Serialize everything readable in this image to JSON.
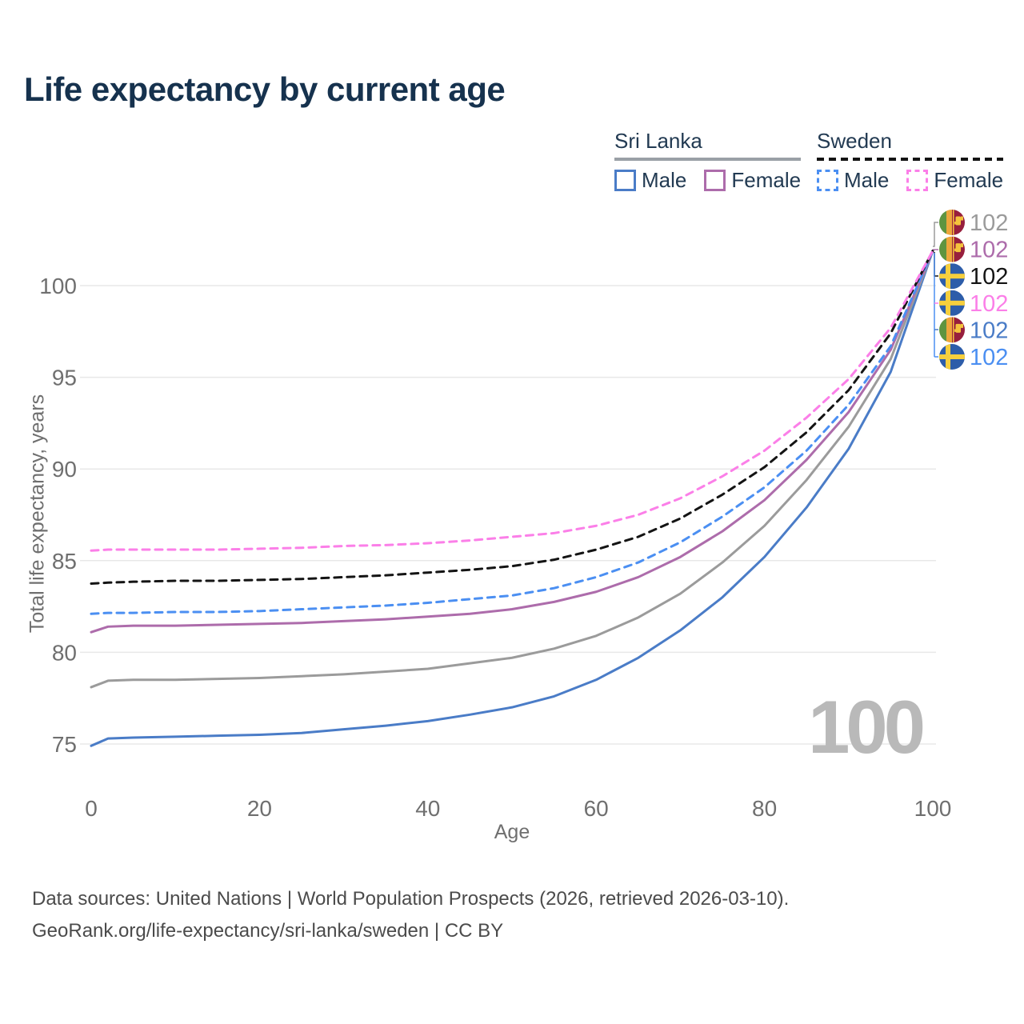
{
  "title": "Life expectancy by current age",
  "legend": {
    "groups": [
      {
        "label": "Sri Lanka",
        "items": [
          {
            "label": "Male"
          },
          {
            "label": "Female"
          }
        ]
      },
      {
        "label": "Sweden",
        "items": [
          {
            "label": "Male"
          },
          {
            "label": "Female"
          }
        ]
      }
    ]
  },
  "watermark_age": "100",
  "footer": {
    "line1": "Data sources: United Nations | World Population Prospects (2026, retrieved 2026-03-10).",
    "line2": "GeoRank.org/life-expectancy/sri-lanka/sweden | CC BY"
  },
  "chart_data": {
    "type": "line",
    "title": "Life expectancy by current age",
    "xlabel": "Age",
    "ylabel": "Total life expectancy, years",
    "xlim": [
      0,
      100
    ],
    "ylim": [
      74,
      103
    ],
    "xticks": [
      0,
      20,
      40,
      60,
      80,
      100
    ],
    "yticks": [
      75,
      80,
      85,
      90,
      95,
      100
    ],
    "grid": true,
    "legend_position": "top-right",
    "ages": [
      0,
      2,
      5,
      10,
      15,
      20,
      25,
      30,
      35,
      40,
      45,
      50,
      55,
      60,
      65,
      70,
      75,
      80,
      85,
      90,
      95,
      100
    ],
    "series": [
      {
        "name": "Sri Lanka Male",
        "country": "Sri Lanka",
        "sex": "male",
        "color": "#4a7cc7",
        "dash": false,
        "values": [
          74.9,
          75.3,
          75.35,
          75.4,
          75.45,
          75.5,
          75.6,
          75.8,
          76.0,
          76.25,
          76.6,
          77.0,
          77.6,
          78.5,
          79.7,
          81.2,
          83.0,
          85.2,
          87.9,
          91.1,
          95.3,
          101.9
        ]
      },
      {
        "name": "Sri Lanka Both sexes",
        "country": "Sri Lanka",
        "sex": "both",
        "color": "#9b9b9b",
        "dash": false,
        "values": [
          78.1,
          78.45,
          78.5,
          78.5,
          78.55,
          78.6,
          78.7,
          78.8,
          78.95,
          79.1,
          79.4,
          79.7,
          80.2,
          80.9,
          81.9,
          83.2,
          84.9,
          86.9,
          89.4,
          92.3,
          96.0,
          101.9
        ]
      },
      {
        "name": "Sri Lanka Female",
        "country": "Sri Lanka",
        "sex": "female",
        "color": "#ad6cab",
        "dash": false,
        "values": [
          81.1,
          81.4,
          81.45,
          81.45,
          81.5,
          81.55,
          81.6,
          81.7,
          81.8,
          81.95,
          82.1,
          82.35,
          82.75,
          83.3,
          84.1,
          85.2,
          86.6,
          88.3,
          90.5,
          93.1,
          96.5,
          101.9
        ]
      },
      {
        "name": "Sweden Male",
        "country": "Sweden",
        "sex": "male",
        "color": "#4b8ff2",
        "dash": true,
        "values": [
          82.1,
          82.15,
          82.15,
          82.2,
          82.2,
          82.25,
          82.35,
          82.45,
          82.55,
          82.7,
          82.9,
          83.1,
          83.5,
          84.1,
          84.9,
          86.0,
          87.4,
          89.0,
          91.0,
          93.5,
          96.7,
          101.9
        ]
      },
      {
        "name": "Sweden Both sexes",
        "country": "Sweden",
        "sex": "both",
        "color": "#141414",
        "dash": true,
        "values": [
          83.75,
          83.8,
          83.85,
          83.9,
          83.9,
          83.95,
          84.0,
          84.1,
          84.2,
          84.35,
          84.5,
          84.7,
          85.05,
          85.6,
          86.3,
          87.3,
          88.6,
          90.1,
          92.0,
          94.3,
          97.4,
          101.9
        ]
      },
      {
        "name": "Sweden Female",
        "country": "Sweden",
        "sex": "female",
        "color": "#fb7fe8",
        "dash": true,
        "values": [
          85.55,
          85.6,
          85.6,
          85.6,
          85.6,
          85.65,
          85.7,
          85.8,
          85.85,
          85.95,
          86.1,
          86.3,
          86.5,
          86.9,
          87.5,
          88.4,
          89.6,
          91.0,
          92.8,
          94.9,
          97.7,
          101.9
        ]
      }
    ],
    "end_labels": [
      {
        "flag": "sri-lanka",
        "value": "102",
        "color": "#9b9b9b",
        "series": "Sri Lanka Both sexes"
      },
      {
        "flag": "sri-lanka",
        "value": "102",
        "color": "#ad6cab",
        "series": "Sri Lanka Female"
      },
      {
        "flag": "sweden",
        "value": "102",
        "color": "#141414",
        "series": "Sweden Both sexes"
      },
      {
        "flag": "sweden",
        "value": "102",
        "color": "#fb7fe8",
        "series": "Sweden Female"
      },
      {
        "flag": "sri-lanka",
        "value": "102",
        "color": "#4a7cc7",
        "series": "Sri Lanka Male"
      },
      {
        "flag": "sweden",
        "value": "102",
        "color": "#4b8ff2",
        "series": "Sweden Male"
      }
    ],
    "legend_colors": {
      "sl_header": "#9aa0a6",
      "sl_male": "#4a7cc7",
      "sl_female": "#ad6cab",
      "se_header": "#141414",
      "se_male": "#4b8ff2",
      "se_female": "#fb7fe8"
    }
  }
}
